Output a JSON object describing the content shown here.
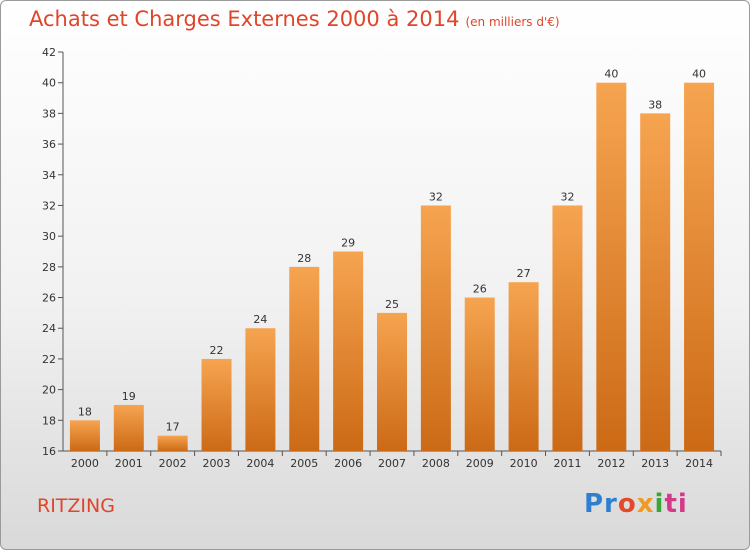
{
  "header": {
    "title": "Achats et Charges Externes 2000 à 2014",
    "subtitle": "(en milliers d'€)"
  },
  "footer": {
    "commune": "RITZING",
    "logo_parts": [
      "Pr",
      "o",
      "x",
      "i",
      "ti"
    ]
  },
  "colors": {
    "bar_light": "#f6a450",
    "bar_dark": "#cc6a16",
    "title": "#e0452a"
  },
  "chart_data": {
    "type": "bar",
    "title": "Achats et Charges Externes 2000 à 2014",
    "subtitle": "(en milliers d'€)",
    "categories": [
      "2000",
      "2001",
      "2002",
      "2003",
      "2004",
      "2005",
      "2006",
      "2007",
      "2008",
      "2009",
      "2010",
      "2011",
      "2012",
      "2013",
      "2014"
    ],
    "values": [
      18,
      19,
      17,
      22,
      24,
      28,
      29,
      25,
      32,
      26,
      27,
      32,
      40,
      38,
      40
    ],
    "ylim": [
      16,
      42
    ],
    "yticks": [
      16,
      18,
      20,
      22,
      24,
      26,
      28,
      30,
      32,
      34,
      36,
      38,
      40,
      42
    ],
    "grid": false,
    "legend": "none"
  }
}
